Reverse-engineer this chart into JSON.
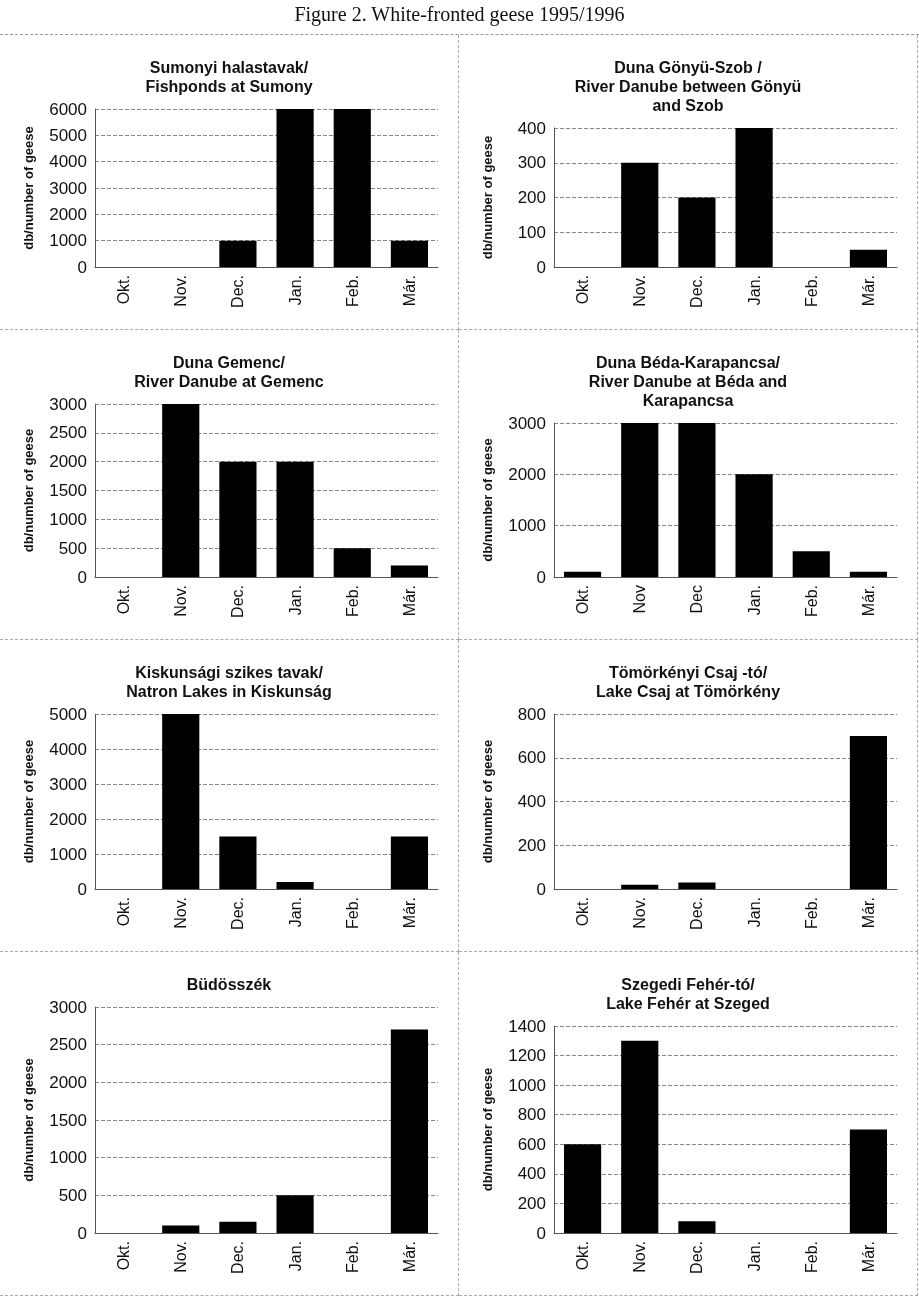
{
  "chart_data": [
    {
      "type": "bar",
      "title": "Sumonyi halastavak/\nFishponds at Sumony",
      "annotations": [
        "Figure 2. White-fronted geese 1995/1996"
      ],
      "ylabel": "db/number of geese",
      "categories": [
        "Okt.",
        "Nov.",
        "Dec.",
        "Jan.",
        "Feb.",
        "Már."
      ],
      "values": [
        0,
        0,
        1000,
        6000,
        6000,
        1000
      ],
      "color": "#000000",
      "ylim": [
        0,
        6000
      ],
      "yticks": [
        0,
        1000,
        2000,
        3000,
        4000,
        5000,
        6000
      ],
      "grid": "y"
    },
    {
      "type": "bar",
      "title": "Duna Gönyü-Szob /\nRiver Danube between Gönyü\nand Szob",
      "ylabel": "db/number of geese",
      "categories": [
        "Okt.",
        "Nov.",
        "Dec.",
        "Jan.",
        "Feb.",
        "Már."
      ],
      "values": [
        0,
        300,
        200,
        400,
        0,
        50
      ],
      "color": "#000000",
      "ylim": [
        0,
        400
      ],
      "yticks": [
        0,
        100,
        200,
        300,
        400
      ],
      "grid": "y"
    },
    {
      "type": "bar",
      "title": "Duna Gemenc/\nRiver Danube at Gemenc",
      "ylabel": "db/number of geese",
      "categories": [
        "Okt.",
        "Nov.",
        "Dec.",
        "Jan.",
        "Feb.",
        "Már."
      ],
      "values": [
        0,
        3000,
        2000,
        2000,
        500,
        200
      ],
      "color": "#000000",
      "ylim": [
        0,
        3000
      ],
      "yticks": [
        0,
        500,
        1000,
        1500,
        2000,
        2500,
        3000
      ],
      "grid": "y"
    },
    {
      "type": "bar",
      "title": "Duna Béda-Karapancsa/\nRiver Danube at Béda and\nKarapancsa",
      "ylabel": "db/number of geese",
      "categories": [
        "Okt.",
        "Nov",
        "Dec",
        "Jan.",
        "Feb.",
        "Már."
      ],
      "values": [
        100,
        3000,
        3000,
        2000,
        500,
        100
      ],
      "color": "#000000",
      "ylim": [
        0,
        3000
      ],
      "yticks": [
        0,
        1000,
        2000,
        3000
      ],
      "grid": "y"
    },
    {
      "type": "bar",
      "title": "Kiskunsági szikes tavak/\nNatron Lakes in Kiskunság",
      "ylabel": "db/number of geese",
      "categories": [
        "Okt.",
        "Nov.",
        "Dec.",
        "Jan.",
        "Feb.",
        "Már."
      ],
      "values": [
        0,
        5000,
        1500,
        200,
        0,
        1500
      ],
      "color": "#000000",
      "ylim": [
        0,
        5000
      ],
      "yticks": [
        0,
        1000,
        2000,
        3000,
        4000,
        5000
      ],
      "grid": "y"
    },
    {
      "type": "bar",
      "title": "Tömörkényi Csaj -tó/\nLake Csaj at Tömörkény",
      "ylabel": "db/number of geese",
      "categories": [
        "Okt.",
        "Nov.",
        "Dec.",
        "Jan.",
        "Feb.",
        "Már."
      ],
      "values": [
        0,
        20,
        30,
        0,
        0,
        700
      ],
      "color": "#000000",
      "ylim": [
        0,
        800
      ],
      "yticks": [
        0,
        200,
        400,
        600,
        800
      ],
      "grid": "y"
    },
    {
      "type": "bar",
      "title": "Büdösszék",
      "ylabel": "db/number of geese",
      "categories": [
        "Okt.",
        "Nov.",
        "Dec.",
        "Jan.",
        "Feb.",
        "Már."
      ],
      "values": [
        0,
        100,
        150,
        500,
        0,
        2700
      ],
      "color": "#000000",
      "ylim": [
        0,
        3000
      ],
      "yticks": [
        0,
        500,
        1000,
        1500,
        2000,
        2500,
        3000
      ],
      "grid": "y"
    },
    {
      "type": "bar",
      "title": "Szegedi Fehér-tó/\nLake Fehér at Szeged",
      "ylabel": "db/number of geese",
      "categories": [
        "Okt.",
        "Nov.",
        "Dec.",
        "Jan.",
        "Feb.",
        "Már."
      ],
      "values": [
        600,
        1300,
        80,
        0,
        0,
        700
      ],
      "color": "#000000",
      "ylim": [
        0,
        1400
      ],
      "yticks": [
        0,
        200,
        400,
        600,
        800,
        1000,
        1200,
        1400
      ],
      "grid": "y"
    }
  ]
}
